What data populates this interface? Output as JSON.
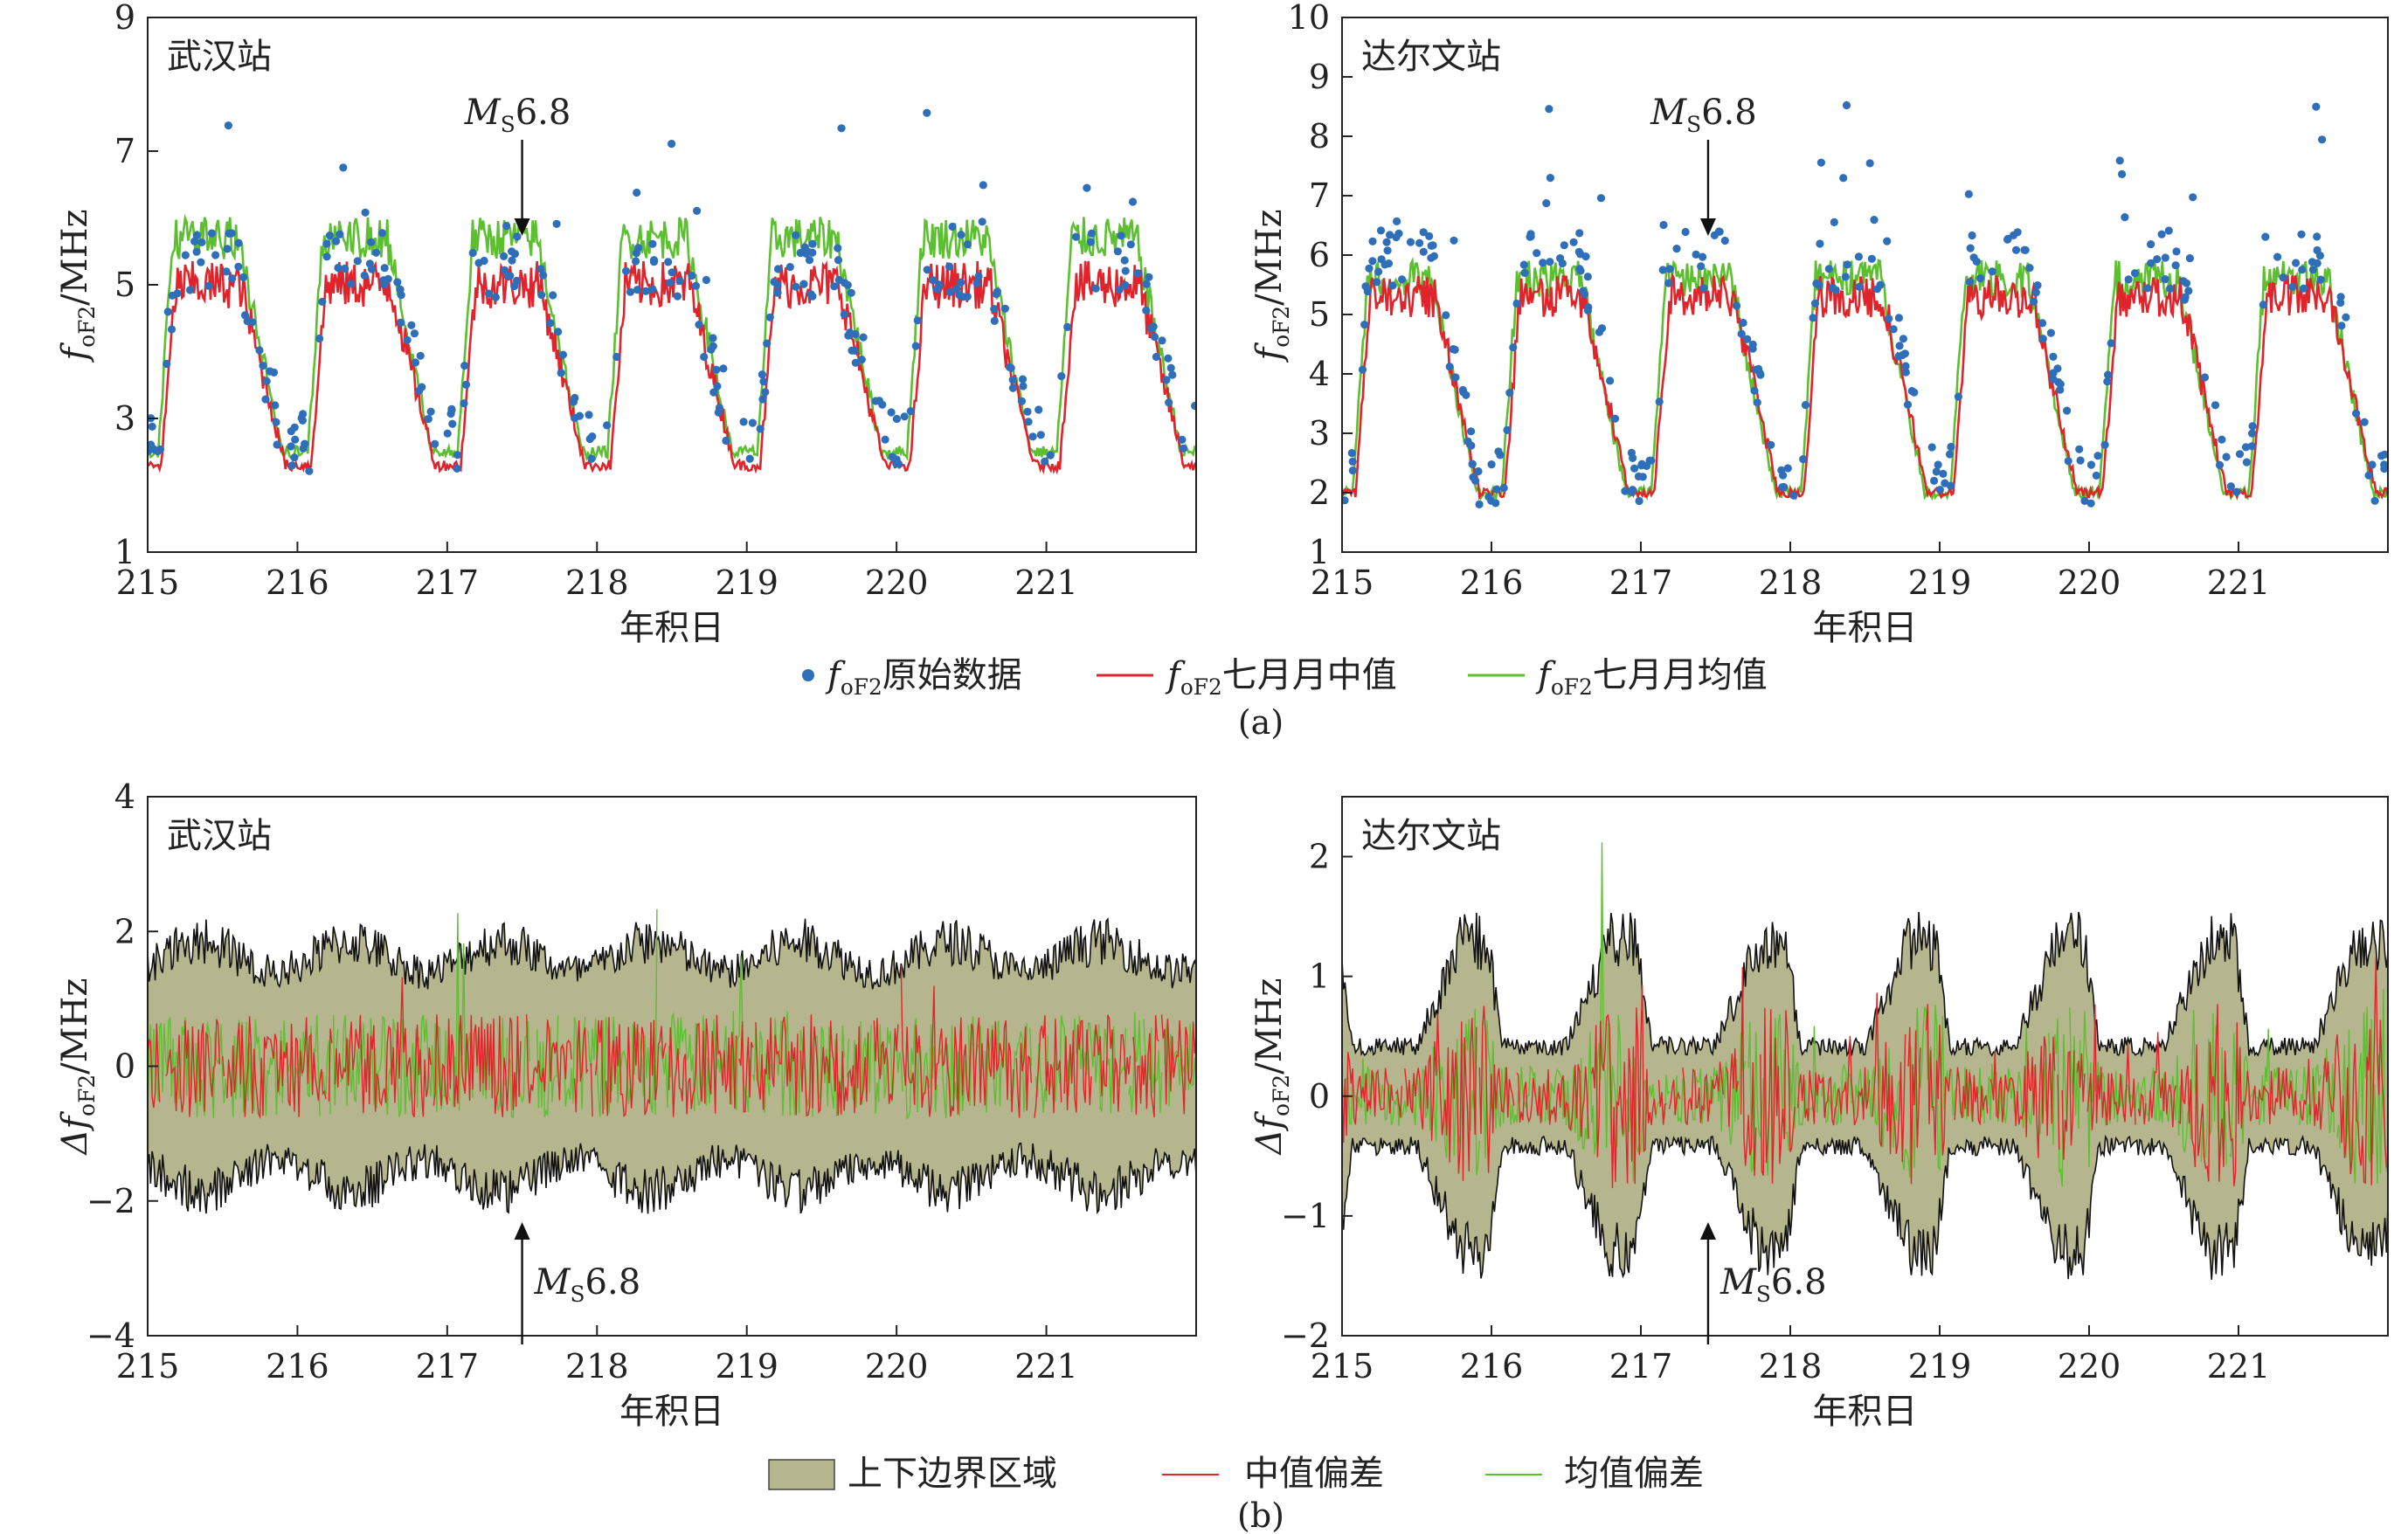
{
  "figure": {
    "panel_a_caption": "(a)",
    "panel_b_caption": "(b)"
  },
  "legend_a": {
    "raw_prefix": "f",
    "raw_sub": "oF2",
    "raw_suffix": "原始数据",
    "median_prefix": "f",
    "median_sub": "oF2",
    "median_suffix": "七月月中值",
    "mean_prefix": "f",
    "mean_sub": "oF2",
    "mean_suffix": "七月月均值"
  },
  "legend_b": {
    "band": "上下边界区域",
    "median_dev": "中值偏差",
    "mean_dev": "均值偏差"
  },
  "colors": {
    "raw": "#2f6fba",
    "median": "#e0242b",
    "mean": "#5cbf2f",
    "band_fill": "#b5b58e",
    "band_edge": "#111111"
  },
  "chart_data": [
    {
      "id": "a-wuhan",
      "type": "scatter+line",
      "station": "武汉站",
      "xlabel": "年积日",
      "ylabel_prefix": "f",
      "ylabel_sub": "oF2",
      "ylabel_suffix": "/MHz",
      "xlim": [
        215,
        222
      ],
      "ylim": [
        1,
        9
      ],
      "xticks": [
        "215",
        "216",
        "217",
        "218",
        "219",
        "220",
        "221"
      ],
      "yticks": [
        "1",
        "3",
        "5",
        "7",
        "9"
      ],
      "annotation": {
        "x": 217.5,
        "text_prefix": "M",
        "text_sub": "S",
        "text_suffix": "6.8"
      },
      "profile": {
        "day": 5.7,
        "night": 2.5,
        "median_day": 5.0,
        "median_night": 2.3,
        "raw_day": 5.3,
        "raw_night": 2.7
      },
      "series": [
        "foF2原始数据",
        "foF2七月月中值",
        "foF2七月月均值"
      ]
    },
    {
      "id": "a-darwin",
      "type": "scatter+line",
      "station": "达尔文站",
      "xlabel": "年积日",
      "ylabel_prefix": "f",
      "ylabel_sub": "oF2",
      "ylabel_suffix": "/MHz",
      "xlim": [
        215,
        222
      ],
      "ylim": [
        1,
        10
      ],
      "xticks": [
        "215",
        "216",
        "217",
        "218",
        "219",
        "220",
        "221"
      ],
      "yticks": [
        "1",
        "2",
        "3",
        "4",
        "5",
        "6",
        "7",
        "8",
        "9",
        "10"
      ],
      "annotation": {
        "x": 217.45,
        "text_prefix": "M",
        "text_sub": "S",
        "text_suffix": "6.8"
      },
      "profile": {
        "day": 5.6,
        "night": 2.0,
        "median_day": 5.3,
        "median_night": 2.0,
        "raw_day": 5.9,
        "raw_night": 2.3
      },
      "series": [
        "foF2原始数据",
        "foF2七月月中值",
        "foF2七月月均值"
      ]
    },
    {
      "id": "b-wuhan",
      "type": "area+line",
      "station": "武汉站",
      "xlabel": "年积日",
      "ylabel_prefix": "Δf",
      "ylabel_sub": "oF2",
      "ylabel_suffix": "/MHz",
      "xlim": [
        215,
        222
      ],
      "ylim": [
        -4,
        4
      ],
      "xticks": [
        "215",
        "216",
        "217",
        "218",
        "219",
        "220",
        "221"
      ],
      "yticks": [
        "−4",
        "−2",
        "0",
        "2",
        "4"
      ],
      "annotation": {
        "x": 217.5,
        "text_prefix": "M",
        "text_sub": "S",
        "text_suffix": "6.8"
      },
      "band_amplitude": {
        "max": 2.0,
        "min": 1.4
      },
      "series": [
        "上下边界区域",
        "中值偏差",
        "均值偏差"
      ]
    },
    {
      "id": "b-darwin",
      "type": "area+line",
      "station": "达尔文站",
      "xlabel": "年积日",
      "ylabel_prefix": "Δf",
      "ylabel_sub": "oF2",
      "ylabel_suffix": "/MHz",
      "xlim": [
        215,
        222
      ],
      "ylim": [
        -2,
        2.5
      ],
      "xticks": [
        "215",
        "216",
        "217",
        "218",
        "219",
        "220",
        "221"
      ],
      "yticks": [
        "−2",
        "−1",
        "0",
        "1",
        "2"
      ],
      "annotation": {
        "x": 217.45,
        "text_prefix": "M",
        "text_sub": "S",
        "text_suffix": "6.8"
      },
      "band_amplitude": {
        "max": 1.4,
        "min": 0.45
      },
      "series": [
        "上下边界区域",
        "中值偏差",
        "均值偏差"
      ]
    }
  ]
}
